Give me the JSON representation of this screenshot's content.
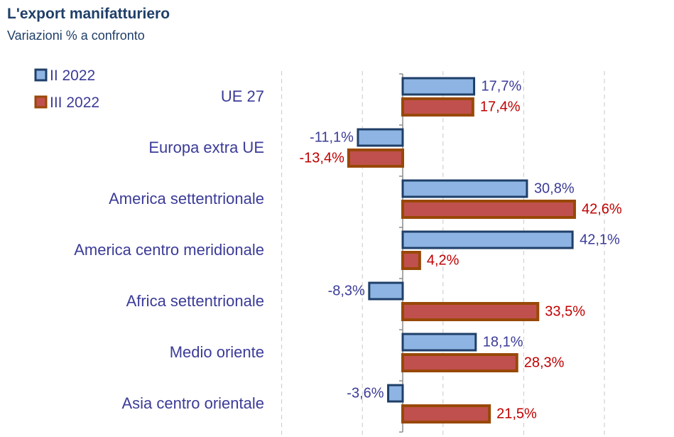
{
  "title": "L'export manifatturiero",
  "subtitle": "Variazioni % a confronto",
  "chart_data": {
    "type": "bar",
    "orientation": "horizontal",
    "categories": [
      "UE 27",
      "Europa extra UE",
      "America settentrionale",
      "America centro meridionale",
      "Africa settentrionale",
      "Medio oriente",
      "Asia centro orientale"
    ],
    "series": [
      {
        "name": "II 2022",
        "values": [
          17.7,
          -11.1,
          30.8,
          42.1,
          -8.3,
          18.1,
          -3.6
        ],
        "labels": [
          "17,7%",
          "-11,1%",
          "30,8%",
          "42,1%",
          "-8,3%",
          "18,1%",
          "-3,6%"
        ],
        "color": "#8eb4e3",
        "stroke": "#1f3f68",
        "label_color": "#3b3b98"
      },
      {
        "name": "III 2022",
        "values": [
          17.4,
          -13.4,
          42.6,
          4.2,
          33.5,
          28.3,
          21.5
        ],
        "labels": [
          "17,4%",
          "-13,4%",
          "42,6%",
          "4,2%",
          "33,5%",
          "28,3%",
          "21,5%"
        ],
        "color": "#c0504d",
        "stroke": "#984807",
        "label_color": "#c00000"
      }
    ],
    "xlim": [
      -30,
      50
    ],
    "grid": true,
    "legend": "top-left"
  }
}
